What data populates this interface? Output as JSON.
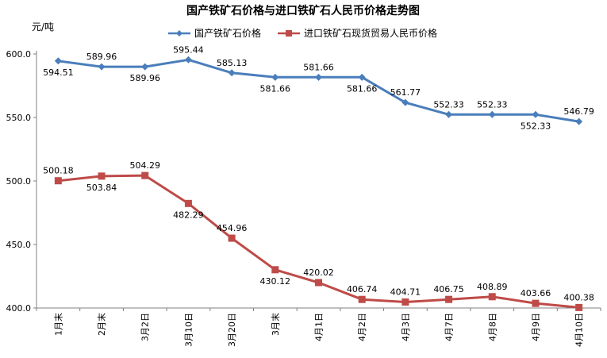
{
  "chart_data": {
    "type": "line",
    "title": "国产铁矿石价格与进口铁矿石人民币价格走势图",
    "ylabel": "元/吨",
    "xlabel": "",
    "ylim": [
      400,
      600
    ],
    "yticks": [
      "400.0",
      "450.0",
      "500.0",
      "550.0",
      "600.0"
    ],
    "grid": false,
    "legend_position": "top-center",
    "categories": [
      "1月末",
      "2月末",
      "3月2日",
      "3月10日",
      "3月20日",
      "3月末",
      "4月1日",
      "4月2日",
      "4月3日",
      "4月7日",
      "4月8日",
      "4月9日",
      "4月10日"
    ],
    "series": [
      {
        "name": "国产铁矿石价格",
        "color": "#4a7ebb",
        "marker": "diamond",
        "values": [
          594.51,
          589.96,
          589.96,
          595.44,
          585.13,
          581.66,
          581.66,
          581.66,
          561.77,
          552.33,
          552.33,
          552.33,
          546.79
        ],
        "labels": [
          "594.51",
          "589.96",
          "589.96",
          "595.44",
          "585.13",
          "581.66",
          "581.66",
          "581.66",
          "561.77",
          "552.33",
          "552.33",
          "552.33",
          "546.79"
        ],
        "label_pos": [
          "below",
          "above",
          "below",
          "above",
          "above",
          "below",
          "above",
          "below",
          "above",
          "above",
          "above",
          "below",
          "above"
        ]
      },
      {
        "name": "进口铁矿石现货贸易人民币价格",
        "color": "#be4b48",
        "marker": "square",
        "values": [
          500.18,
          503.84,
          504.29,
          482.29,
          454.96,
          430.12,
          420.02,
          406.74,
          404.71,
          406.75,
          408.89,
          403.66,
          400.38
        ],
        "labels": [
          "500.18",
          "503.84",
          "504.29",
          "482.29",
          "454.96",
          "430.12",
          "420.02",
          "406.74",
          "404.71",
          "406.75",
          "408.89",
          "403.66",
          "400.38"
        ],
        "label_pos": [
          "above",
          "below",
          "above",
          "below",
          "above",
          "below",
          "above",
          "above",
          "above",
          "above",
          "above",
          "above",
          "above"
        ]
      }
    ]
  }
}
